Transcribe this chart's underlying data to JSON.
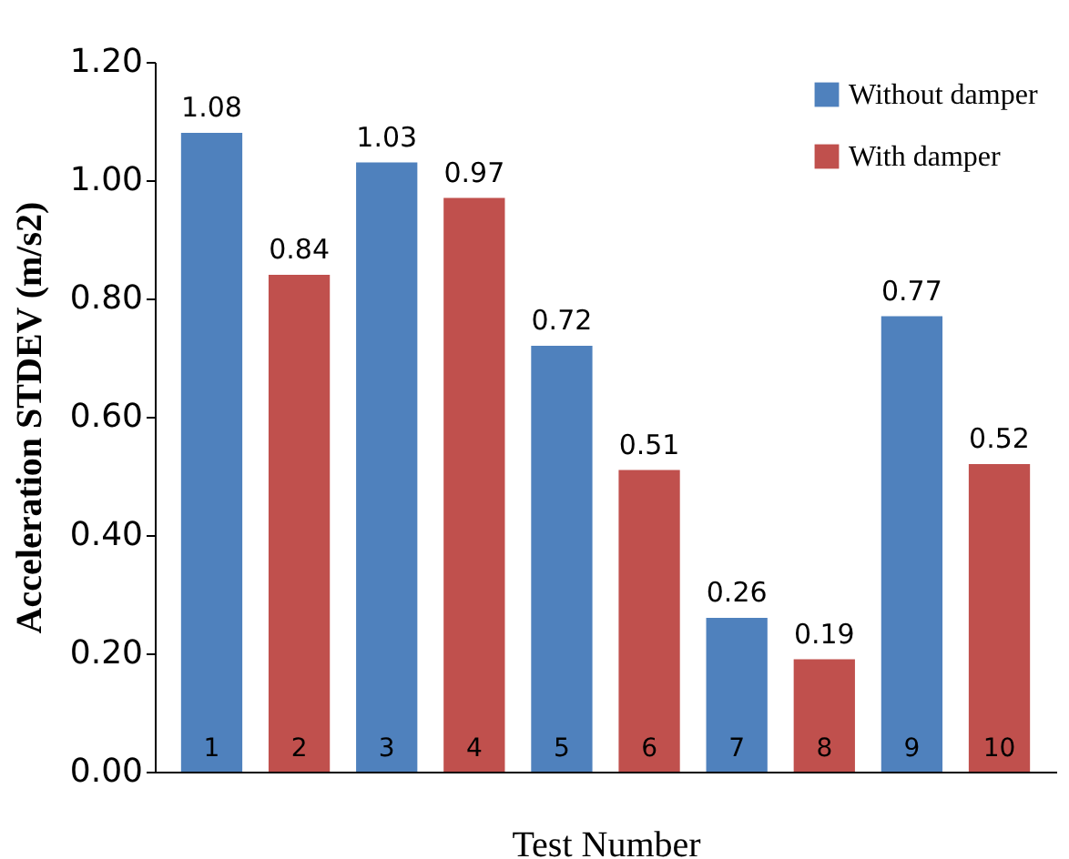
{
  "chart_data": {
    "type": "bar",
    "xlabel": "Test Number",
    "ylabel": "Acceleration  STDEV (m/s2)",
    "categories": [
      "1",
      "2",
      "3",
      "4",
      "5",
      "6",
      "7",
      "8",
      "9",
      "10"
    ],
    "series": [
      {
        "name": "Without damper",
        "color": "#4f81bd",
        "values": [
          1.08,
          null,
          1.03,
          null,
          0.72,
          null,
          0.26,
          null,
          0.77,
          null
        ]
      },
      {
        "name": "With damper",
        "color": "#c0504d",
        "values": [
          null,
          0.84,
          null,
          0.97,
          null,
          0.51,
          null,
          0.19,
          null,
          0.52
        ]
      }
    ],
    "ylim": [
      0,
      1.2
    ],
    "yticks": [
      {
        "value": 0,
        "label": "0.00"
      },
      {
        "value": 0.2,
        "label": "0.20"
      },
      {
        "value": 0.4,
        "label": "0.40"
      },
      {
        "value": 0.6,
        "label": "0.60"
      },
      {
        "value": 0.8,
        "label": "0.80"
      },
      {
        "value": 1.0,
        "label": "1.00"
      },
      {
        "value": 1.2,
        "label": "1.20"
      }
    ],
    "data_labels": true,
    "grid": false,
    "legend": "top right"
  }
}
